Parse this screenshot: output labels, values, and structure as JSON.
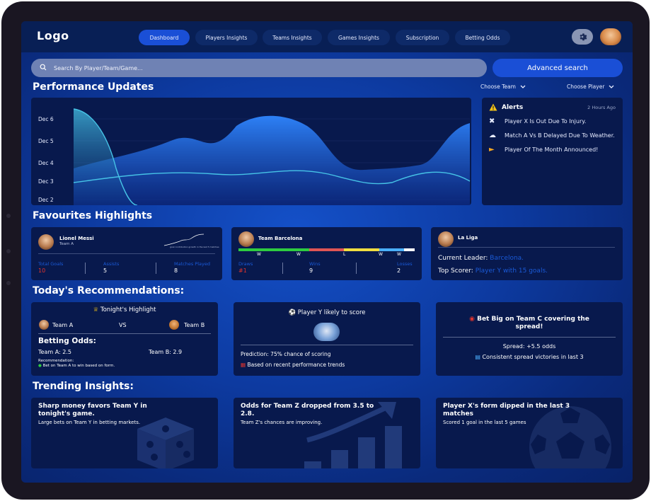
{
  "header": {
    "logo": "Logo",
    "nav": [
      "Dashboard",
      "Players Insights",
      "Teams Insights",
      "Games Insights",
      "Subscription",
      "Betting Odds"
    ],
    "active_nav": "Dashboard"
  },
  "search": {
    "placeholder": "Search By Player/Team/Game...",
    "advanced_label": "Advanced search"
  },
  "performance": {
    "title": "Performance Updates",
    "choose_team": "Choose Team",
    "choose_player": "Choose Player",
    "y_labels": [
      "Dec 6",
      "Dec 5",
      "Dec 4",
      "Dec 3",
      "Dec 2"
    ]
  },
  "alerts": {
    "title": "Alerts",
    "time": "2 Hours Ago",
    "items": [
      {
        "icon": "injury-icon",
        "text": "Player X Is Out Due To Injury."
      },
      {
        "icon": "weather-icon",
        "text": "Match A Vs B Delayed Due To Weather."
      },
      {
        "icon": "megaphone-icon",
        "text": "Player Of The Month Announced!"
      }
    ]
  },
  "favourites": {
    "title": "Favourites Highlights",
    "player": {
      "name": "Lionel Messi",
      "team": "Team A",
      "mini_chart_caption": "goal contribution growth in the last 5 matches",
      "stats": [
        {
          "label": "Total Goals",
          "value": "10"
        },
        {
          "label": "Assists",
          "value": "5"
        },
        {
          "label": "Matches Played",
          "value": "8"
        }
      ]
    },
    "team": {
      "name": "Team Barcelona",
      "form": [
        "W",
        "W",
        "L",
        "W",
        "W"
      ],
      "form_colors": [
        "#2ecc40",
        "#2ecc40",
        "#e05555",
        "#f0dd40",
        "#4ab0ff",
        "#ffffff"
      ],
      "stats": [
        {
          "label": "Draws",
          "value": "#1"
        },
        {
          "label": "Wins",
          "value": "9"
        },
        {
          "label": "Losses",
          "value": "2"
        }
      ]
    },
    "league": {
      "name": "La Liga",
      "leader_label": "Current Leader:",
      "leader_value": "Barcelona.",
      "scorer_label": "Top Scorer:",
      "scorer_value": "Player Y with 15 goals."
    }
  },
  "recommendations": {
    "title": "Today's Recommendations:",
    "highlight": {
      "heading": "Tonight's Highlight",
      "team_a": "Team A",
      "vs": "VS",
      "team_b": "Team B",
      "odds_title": "Betting Odds:",
      "odds_a": "Team A: 2.5",
      "odds_b": "Team B: 2.9",
      "rec_label": "Recommendation:",
      "rec_text": "Bet on Team A to win based on form."
    },
    "score": {
      "heading": "Player Y likely to score",
      "prediction": "Prediction: 75% chance of scoring",
      "trend": "Based on recent performance trends"
    },
    "bet": {
      "heading": "Bet Big on Team C covering the spread!",
      "spread": "Spread: +5.5 odds",
      "consistency": "Consistent spread victories in last 3"
    }
  },
  "trending": {
    "title": "Trending Insights:",
    "cards": [
      {
        "title": "Sharp money favors Team Y in tonight's game.",
        "body": "Large bets on Team Y in betting markets.",
        "icon": "dice-icon"
      },
      {
        "title": "Odds for Team Z dropped from 3.5 to 2.8.",
        "body": "Team Z's chances are improving.",
        "icon": "bar-growth-icon"
      },
      {
        "title": "Player X's form dipped in the last 3 matches",
        "body": "Scored 1 goal in the last 5 games",
        "icon": "soccer-ball-icon"
      }
    ]
  },
  "colors": {
    "accent": "#1a4fd6",
    "panel": "#08194d",
    "link": "#1a5ad8",
    "alert_red": "#e0342e"
  }
}
